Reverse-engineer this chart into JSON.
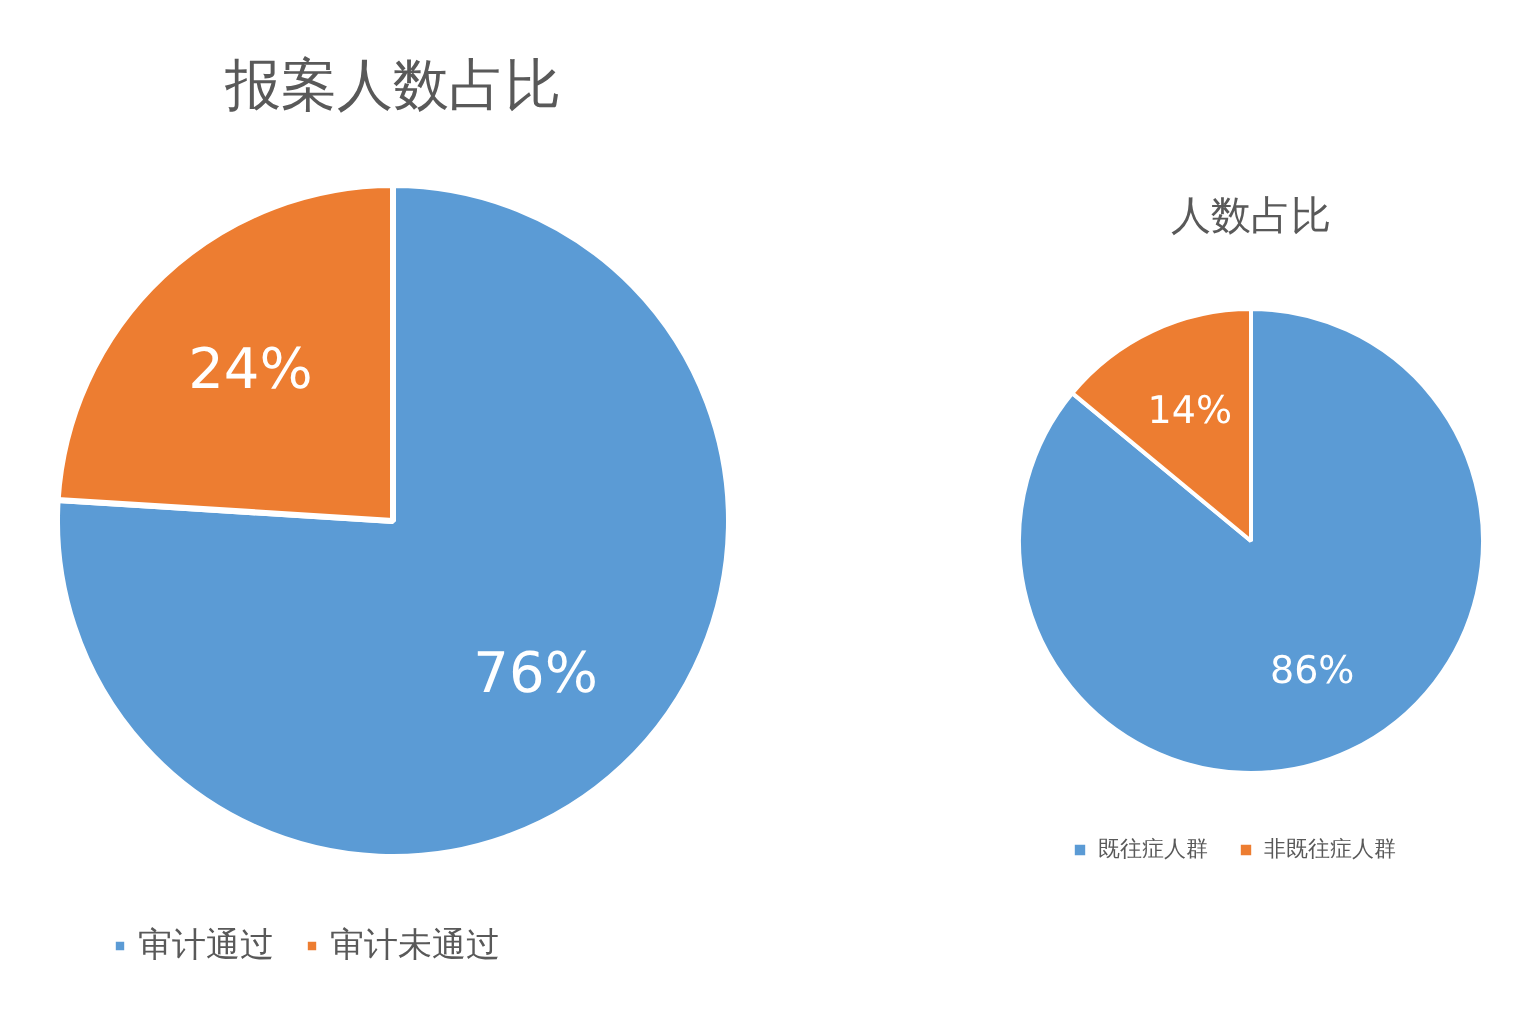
{
  "chart_data": [
    {
      "type": "pie",
      "title": "报案人数占比",
      "categories": [
        "审计通过",
        "审计未通过"
      ],
      "values": [
        76,
        24
      ],
      "colors": [
        "#5b9bd5",
        "#ed7d31"
      ],
      "value_labels": [
        "76%",
        "24%"
      ],
      "legend": "bottom"
    },
    {
      "type": "pie",
      "title": "人数占比",
      "categories": [
        "既往症人群",
        "非既往症人群"
      ],
      "values": [
        86,
        14
      ],
      "colors": [
        "#5b9bd5",
        "#ed7d31"
      ],
      "value_labels": [
        "86%",
        "14%"
      ],
      "legend": "bottom"
    }
  ]
}
